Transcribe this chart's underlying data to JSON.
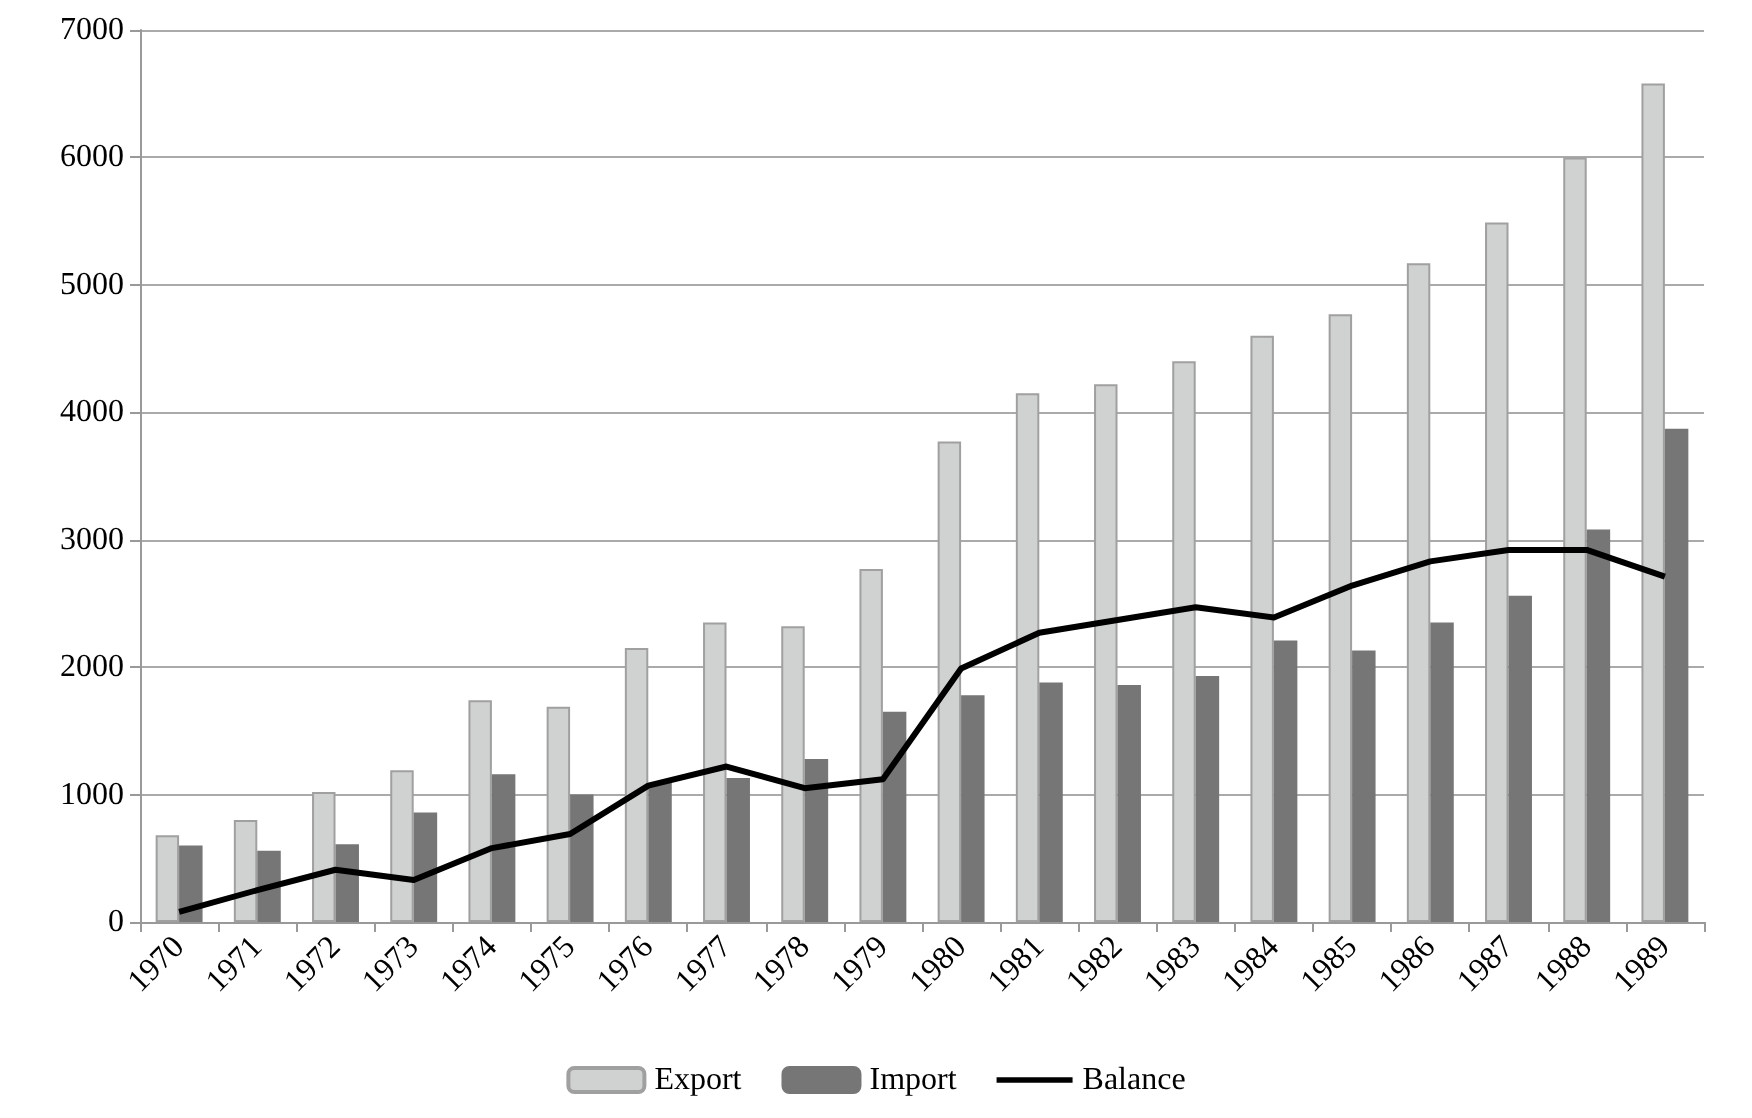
{
  "chart_data": {
    "type": "bar",
    "categories": [
      "1970",
      "1971",
      "1972",
      "1973",
      "1974",
      "1975",
      "1976",
      "1977",
      "1978",
      "1979",
      "1980",
      "1981",
      "1982",
      "1983",
      "1984",
      "1985",
      "1986",
      "1987",
      "1988",
      "1989"
    ],
    "series": [
      {
        "name": "Export",
        "color": "#d0d1d1",
        "values": [
          680,
          800,
          1020,
          1190,
          1740,
          1690,
          2150,
          2350,
          2320,
          2770,
          3770,
          4150,
          4220,
          4400,
          4600,
          4770,
          5170,
          5490,
          6000,
          6580
        ]
      },
      {
        "name": "Import",
        "color": "#767676",
        "values": [
          600,
          560,
          610,
          860,
          1160,
          1000,
          1090,
          1130,
          1280,
          1650,
          1780,
          1880,
          1860,
          1930,
          2210,
          2130,
          2350,
          2560,
          3080,
          3870
        ]
      },
      {
        "name": "Balance",
        "type": "line",
        "color": "#000000",
        "values": [
          80,
          250,
          410,
          330,
          580,
          690,
          1070,
          1220,
          1050,
          1120,
          1990,
          2270,
          2370,
          2470,
          2390,
          2640,
          2830,
          2920,
          2920,
          2710
        ]
      }
    ],
    "ylim": [
      0,
      7000
    ],
    "yticks": [
      0,
      1000,
      2000,
      3000,
      4000,
      5000,
      6000,
      7000
    ],
    "grid": "y",
    "legend": "bottom",
    "marker": "none"
  }
}
